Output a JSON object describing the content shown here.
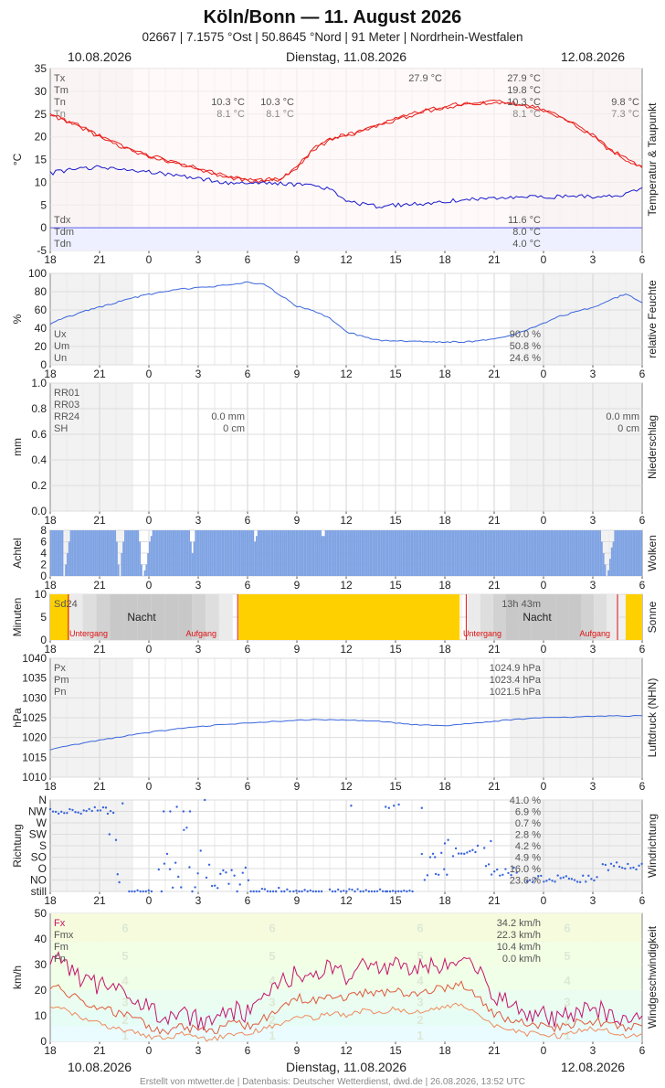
{
  "header": {
    "title": "Köln/Bonn  —  11. August 2026",
    "subtitle": "02667  |  7.1575 °Ost  |  50.8645 °Nord  |  91 Meter  |  Nordrhein-Westfalen",
    "date_left": "10.08.2026",
    "date_center": "Dienstag, 11.08.2026",
    "date_right": "12.08.2026"
  },
  "footer": {
    "date_left": "10.08.2026",
    "date_center": "Dienstag, 11.08.2026",
    "date_right": "12.08.2026",
    "credit": "Erstellt von mtwetter.de | Datenbasis: Deutscher Wetterdienst, dwd.de | 26.08.2026, 13:52 UTC"
  },
  "x_ticks": [
    "18",
    "21",
    "0",
    "3",
    "6",
    "9",
    "12",
    "15",
    "18",
    "21",
    "0",
    "3",
    "6"
  ],
  "colors": {
    "temp": "#e8201c",
    "dew": "#1a1acc",
    "hum": "#3a66dd",
    "cloud": "#7fa3e3",
    "sun": "#ffd000",
    "night": "#c8c8c8",
    "wind1": "#c4146c",
    "wind2": "#e05a3a",
    "wind3": "#f08a5a"
  },
  "chart_data": [
    {
      "id": "temp",
      "type": "line",
      "ylabel": "°C",
      "side_label": "Temperatur & Taupunkt",
      "ylim": [
        -5,
        35
      ],
      "yticks": [
        "35",
        "30",
        "25",
        "20",
        "15",
        "10",
        "5",
        "0",
        "-5"
      ],
      "x_hours": [
        0,
        1,
        2,
        3,
        4,
        5,
        6,
        7,
        8,
        9,
        10,
        11,
        12,
        13,
        14,
        15,
        16,
        17,
        18,
        19,
        20,
        21,
        22,
        23,
        24,
        25,
        26,
        27,
        28,
        29,
        30,
        31,
        32,
        33,
        34,
        35,
        36
      ],
      "series": [
        {
          "values": [
            25.0,
            23.6,
            22.1,
            20.2,
            18.5,
            17.1,
            15.9,
            15.0,
            14.1,
            13.0,
            12.0,
            11.2,
            10.7,
            10.5,
            10.9,
            13.4,
            17.5,
            19.5,
            20.5,
            21.4,
            22.7,
            24.0,
            25.0,
            26.0,
            26.6,
            27.3,
            27.6,
            27.9,
            27.5,
            27.0,
            26.1,
            24.5,
            22.7,
            20.4,
            17.5,
            15.2,
            13.5
          ]
        },
        {
          "values": [
            24.8,
            23.3,
            21.8,
            19.9,
            18.2,
            16.9,
            15.6,
            14.7,
            13.8,
            12.7,
            11.7,
            10.9,
            10.4,
            10.3,
            10.6,
            13.1,
            17.2,
            19.2,
            20.2,
            21.1,
            22.4,
            23.7,
            24.7,
            25.7,
            26.3,
            27.0,
            27.3,
            27.6,
            27.2,
            26.7,
            25.8,
            24.2,
            22.4,
            20.1,
            17.1,
            14.9,
            13.2
          ]
        },
        {
          "values": [
            12.0,
            12.6,
            13.0,
            13.3,
            13.1,
            12.7,
            12.2,
            11.8,
            11.3,
            10.8,
            10.3,
            9.9,
            9.7,
            9.9,
            9.8,
            9.5,
            9.3,
            8.5,
            5.6,
            5.2,
            4.7,
            5.0,
            5.2,
            5.3,
            5.7,
            6.2,
            6.4,
            6.6,
            6.7,
            6.8,
            6.8,
            6.8,
            6.8,
            6.9,
            7.1,
            7.3,
            8.8
          ]
        }
      ],
      "text": {
        "labels": [
          "Tx",
          "Tm",
          "Tn",
          "Tn"
        ],
        "labels_low": [
          "Tdx",
          "Tdm",
          "Tdn"
        ],
        "day1": [
          "10.3 °C",
          "8.1 °C"
        ],
        "day2": [
          "10.3 °C",
          "8.1 °C"
        ],
        "day3": [
          "9.8 °C",
          "7.3 °C"
        ],
        "max_mark": "27.9 °C",
        "mid": [
          "27.9 °C",
          "19.8 °C",
          "10.3 °C",
          "8.1 °C"
        ],
        "mid_low": [
          "11.6 °C",
          "8.0 °C",
          "4.0 °C"
        ]
      }
    },
    {
      "id": "hum",
      "type": "line",
      "ylabel": "%",
      "side_label": "relative Feuchte",
      "ylim": [
        0,
        100
      ],
      "yticks": [
        "100",
        "80",
        "60",
        "40",
        "20",
        "0"
      ],
      "x_hours": [
        0,
        1,
        2,
        3,
        4,
        5,
        6,
        7,
        8,
        9,
        10,
        11,
        12,
        13,
        14,
        15,
        16,
        17,
        18,
        19,
        20,
        21,
        22,
        23,
        24,
        25,
        26,
        27,
        28,
        29,
        30,
        31,
        32,
        33,
        34,
        35,
        36
      ],
      "series": [
        {
          "values": [
            45,
            52,
            58,
            63,
            68,
            73,
            77,
            80,
            83,
            84,
            86,
            88,
            90,
            88,
            76,
            64,
            59,
            51,
            36,
            31,
            27,
            26,
            26,
            25,
            25,
            25,
            26,
            28,
            32,
            38,
            45,
            53,
            58,
            63,
            70,
            78,
            68
          ]
        }
      ],
      "text": {
        "labels": [
          "Ux",
          "Um",
          "Un"
        ],
        "values": [
          "90.0 %",
          "50.8 %",
          "24.6 %"
        ]
      }
    },
    {
      "id": "precip",
      "type": "bar",
      "ylabel": "mm",
      "side_label": "Niederschlag",
      "ylim": [
        0,
        1.0
      ],
      "yticks": [
        "1.0",
        "0.8",
        "0.6",
        "0.4",
        "0.2",
        "0.0"
      ],
      "text": {
        "labels": [
          "RR01",
          "RR03",
          "RR24",
          "SH"
        ],
        "day1": [
          "0.0 mm",
          "0 cm"
        ],
        "day2": [
          "0.0 mm",
          "0 cm"
        ]
      }
    },
    {
      "id": "clouds",
      "type": "bar",
      "ylabel": "Achtel",
      "side_label": "Wolken",
      "ylim": [
        0,
        8
      ],
      "yticks": [
        "8",
        "6",
        "4",
        "2",
        "0"
      ],
      "dips": [
        [
          0.8,
          8
        ],
        [
          0.9,
          6
        ],
        [
          1.0,
          4
        ],
        [
          1.1,
          2
        ],
        [
          4.0,
          2
        ],
        [
          4.1,
          6
        ],
        [
          4.2,
          8
        ],
        [
          4.3,
          4
        ],
        [
          4.4,
          2
        ],
        [
          5.4,
          2
        ],
        [
          5.5,
          6
        ],
        [
          5.6,
          8
        ],
        [
          5.7,
          7
        ],
        [
          5.8,
          6
        ],
        [
          5.9,
          4
        ],
        [
          6.0,
          2
        ],
        [
          6.1,
          1
        ],
        [
          8.5,
          2
        ],
        [
          8.6,
          4
        ],
        [
          8.7,
          2
        ],
        [
          12.4,
          2
        ],
        [
          12.5,
          1
        ],
        [
          16.5,
          1
        ],
        [
          16.6,
          1
        ],
        [
          33.5,
          2
        ],
        [
          33.6,
          4
        ],
        [
          33.7,
          6
        ],
        [
          33.8,
          8
        ],
        [
          33.9,
          7
        ],
        [
          34.0,
          5
        ],
        [
          34.1,
          3
        ],
        [
          34.2,
          2
        ]
      ]
    },
    {
      "id": "sun",
      "type": "bar",
      "ylabel": "Minuten",
      "side_label": "Sonne",
      "ylim": [
        0,
        10
      ],
      "yticks": [
        "10",
        "5",
        "0"
      ],
      "text": {
        "sd24": "Sd24",
        "sd24_value": "13h 43m",
        "nacht": "Nacht",
        "nacht2": "Nacht",
        "untergang": "Untergang",
        "aufgang": "Aufgang",
        "untergang2": "Untergang",
        "aufgang2": "Aufgang"
      }
    },
    {
      "id": "press",
      "type": "line",
      "ylabel": "hPa",
      "side_label": "Luftdruck (NHN)",
      "ylim": [
        1010,
        1040
      ],
      "yticks": [
        "1040",
        "1035",
        "1030",
        "1025",
        "1020",
        "1015",
        "1010"
      ],
      "x_hours": [
        0,
        2,
        4,
        6,
        8,
        10,
        12,
        14,
        16,
        18,
        20,
        22,
        24,
        26,
        28,
        30,
        32,
        34,
        36
      ],
      "series": [
        {
          "values": [
            1017.0,
            1018.6,
            1020.0,
            1021.3,
            1022.3,
            1023.1,
            1023.7,
            1024.1,
            1024.5,
            1024.4,
            1024.1,
            1023.3,
            1023.0,
            1023.7,
            1024.5,
            1025.0,
            1025.2,
            1025.4,
            1025.5
          ]
        }
      ],
      "text": {
        "labels": [
          "Px",
          "Pm",
          "Pn"
        ],
        "values": [
          "1024.9 hPa",
          "1023.4 hPa",
          "1021.5 hPa"
        ]
      }
    },
    {
      "id": "dir",
      "type": "scatter",
      "ylabel": "Richtung",
      "side_label": "Windrichtung",
      "yticks": [
        "N",
        "NW",
        "W",
        "SW",
        "S",
        "SO",
        "O",
        "NO",
        "still"
      ],
      "text": {
        "values": [
          "41.0 %",
          "6.9 %",
          "0.7 %",
          "2.8 %",
          "4.2 %",
          "4.9 %",
          "16.0 %",
          "23.6 %"
        ]
      }
    },
    {
      "id": "wind",
      "type": "line",
      "ylabel": "km/h",
      "side_label": "Windgeschwindigkeit",
      "ylim": [
        0,
        50
      ],
      "yticks": [
        "50",
        "40",
        "30",
        "20",
        "10",
        "0"
      ],
      "bft": [
        "6",
        "5",
        "4",
        "3",
        "2",
        "1"
      ],
      "x_hours": [
        0,
        1,
        2,
        3,
        4,
        5,
        6,
        7,
        8,
        9,
        10,
        11,
        12,
        13,
        14,
        15,
        16,
        17,
        18,
        19,
        20,
        21,
        22,
        23,
        24,
        25,
        26,
        27,
        28,
        29,
        30,
        31,
        32,
        33,
        34,
        35,
        36
      ],
      "series": [
        {
          "values": [
            34,
            28,
            24,
            22,
            19,
            17,
            12,
            8,
            11,
            8,
            9,
            12,
            11,
            16,
            22,
            27,
            25,
            29,
            26,
            31,
            28,
            30,
            27,
            29,
            31,
            34,
            28,
            17,
            15,
            12,
            10,
            9,
            12,
            13,
            11,
            9,
            10
          ]
        },
        {
          "values": [
            22,
            19,
            15,
            13,
            11,
            10,
            6,
            4,
            6,
            4,
            4,
            7,
            6,
            9,
            13,
            17,
            16,
            18,
            17,
            19,
            18,
            20,
            18,
            20,
            21,
            22,
            18,
            11,
            8,
            7,
            6,
            5,
            7,
            8,
            7,
            5,
            6
          ]
        },
        {
          "values": [
            14,
            12,
            9,
            7,
            5,
            4,
            2,
            1,
            3,
            1,
            1,
            3,
            3,
            5,
            7,
            10,
            9,
            11,
            10,
            12,
            11,
            13,
            11,
            12,
            14,
            14,
            11,
            6,
            4,
            3,
            3,
            2,
            4,
            5,
            4,
            2,
            3
          ]
        }
      ],
      "text": {
        "labels": [
          "Fx",
          "Fmx",
          "Fm",
          "Fn"
        ],
        "values": [
          "34.2 km/h",
          "22.3 km/h",
          "10.4 km/h",
          "0.0 km/h"
        ]
      }
    }
  ]
}
